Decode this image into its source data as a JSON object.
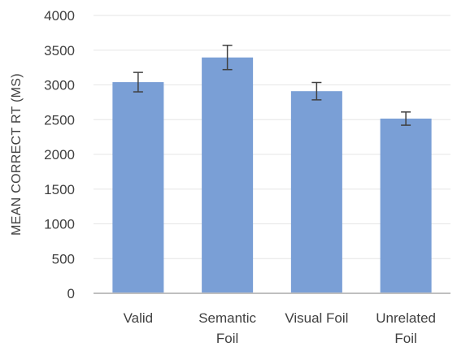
{
  "chart_data": {
    "type": "bar",
    "categories": [
      [
        "Valid"
      ],
      [
        "Semantic",
        "Foil"
      ],
      [
        "Visual Foil"
      ],
      [
        "Unrelated",
        "Foil"
      ]
    ],
    "values": [
      3040,
      3395,
      2910,
      2515
    ],
    "errors": [
      140,
      175,
      125,
      95
    ],
    "ylabel": "MEAN CORRECT RT (MS)",
    "ylim": [
      0,
      4000
    ],
    "yticks": [
      0,
      500,
      1000,
      1500,
      2000,
      2500,
      3000,
      3500,
      4000
    ],
    "grid": true,
    "bar_color": "#7a9fd6",
    "error_bar_color": "#404040",
    "grid_color": "#e6e6e6",
    "axis_color": "#bfbfbf"
  }
}
